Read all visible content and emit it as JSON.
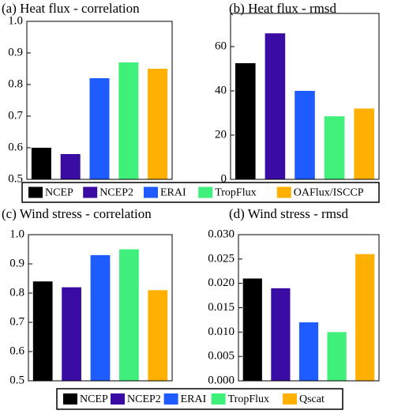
{
  "chart_data": [
    {
      "type": "bar",
      "title": "(a)  Heat flux - correlation",
      "values": [
        0.6,
        0.58,
        0.82,
        0.87,
        0.85
      ],
      "ylim": [
        0.5,
        1.0
      ],
      "yticks": [
        0.5,
        0.6,
        0.7,
        0.8,
        0.9,
        {
          "value": 1.0,
          "label": "1.0"
        }
      ]
    },
    {
      "type": "bar",
      "title": "(b)  Heat flux - rmsd",
      "values": [
        52.5,
        66,
        40,
        28.5,
        32
      ],
      "ylim": [
        0,
        75
      ],
      "yticks": [
        0,
        20,
        40,
        60
      ]
    },
    {
      "type": "bar",
      "title": "(c)  Wind stress - correlation",
      "values": [
        0.84,
        0.82,
        0.93,
        0.95,
        0.81
      ],
      "ylim": [
        0.5,
        1.0
      ],
      "yticks": [
        0.5,
        0.6,
        0.7,
        0.8,
        0.9,
        {
          "value": 1.0,
          "label": "1.0"
        }
      ]
    },
    {
      "type": "bar",
      "title": "(d)  Wind stress - rmsd",
      "values": [
        0.021,
        0.019,
        0.012,
        0.01,
        0.026
      ],
      "ylim": [
        0,
        0.03
      ],
      "yticks": [
        {
          "value": 0,
          "label": "0.000"
        },
        {
          "value": 0.005,
          "label": "0.005"
        },
        {
          "value": 0.01,
          "label": "0.010"
        },
        {
          "value": 0.015,
          "label": "0.015"
        },
        {
          "value": 0.02,
          "label": "0.020"
        },
        {
          "value": 0.025,
          "label": "0.025"
        },
        {
          "value": 0.03,
          "label": "0.030"
        }
      ]
    }
  ],
  "legends": [
    {
      "names": [
        "NCEP",
        "NCEP2",
        "ERAI",
        "TropFlux",
        "OAFlux/ISCCP"
      ],
      "colors": [
        "#000000",
        "#3a0ca3",
        "#1f5cff",
        "#3ff07a",
        "#ffb000"
      ]
    },
    {
      "names": [
        "NCEP",
        "NCEP2",
        "ERAI",
        "TropFlux",
        "Qscat"
      ],
      "colors": [
        "#000000",
        "#3a0ca3",
        "#1f5cff",
        "#3ff07a",
        "#ffb000"
      ]
    }
  ]
}
